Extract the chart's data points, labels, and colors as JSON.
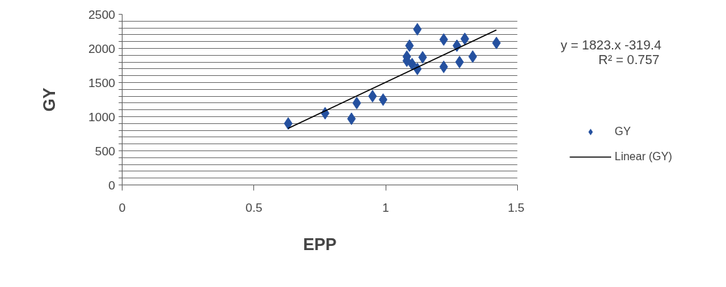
{
  "chart_data": {
    "type": "scatter",
    "xlabel": "EPP",
    "ylabel": "GY",
    "xlim": [
      0,
      1.5
    ],
    "xticks": [
      0,
      0.5,
      1,
      1.5
    ],
    "ylim": [
      0,
      2500
    ],
    "yticks": [
      0,
      {
        "value": 100,
        "label": null
      },
      {
        "value": 200,
        "label": null
      },
      {
        "value": 300,
        "label": null
      },
      {
        "value": 400,
        "label": null
      },
      500,
      {
        "value": 600,
        "label": null
      },
      {
        "value": 700,
        "label": null
      },
      {
        "value": 800,
        "label": null
      },
      {
        "value": 900,
        "label": null
      },
      1000,
      {
        "value": 1100,
        "label": null
      },
      {
        "value": 1200,
        "label": null
      },
      {
        "value": 1300,
        "label": null
      },
      {
        "value": 1400,
        "label": null
      },
      1500,
      {
        "value": 1600,
        "label": null
      },
      {
        "value": 1700,
        "label": null
      },
      {
        "value": 1800,
        "label": null
      },
      {
        "value": 1900,
        "label": null
      },
      2000,
      {
        "value": 2100,
        "label": null
      },
      {
        "value": 2200,
        "label": null
      },
      {
        "value": 2300,
        "label": null
      },
      {
        "value": 2400,
        "label": null
      },
      2500
    ],
    "grid": "y",
    "legend": "right",
    "annotations": [
      "y = 1823.x  -319.4",
      "R² = 0.757"
    ],
    "series": [
      {
        "name": "GY",
        "marker": "diamond",
        "color": "#24509f",
        "x": [
          0.63,
          0.77,
          0.87,
          0.89,
          0.95,
          0.99,
          1.12,
          1.09,
          1.08,
          1.1,
          1.14,
          1.12,
          1.22,
          1.22,
          1.27,
          1.3,
          1.28,
          1.33,
          1.42,
          1.08
        ],
        "values": [
          900,
          1050,
          970,
          1200,
          1300,
          1250,
          2280,
          2040,
          1880,
          1770,
          1870,
          1700,
          2130,
          1730,
          2040,
          2140,
          1800,
          1880,
          2080,
          1820
        ]
      },
      {
        "name": "Linear (GY)",
        "type": "line",
        "color": "#000000",
        "line_style": "solid",
        "x": [
          0.63,
          1.42
        ],
        "values": [
          830,
          2270
        ]
      }
    ]
  }
}
